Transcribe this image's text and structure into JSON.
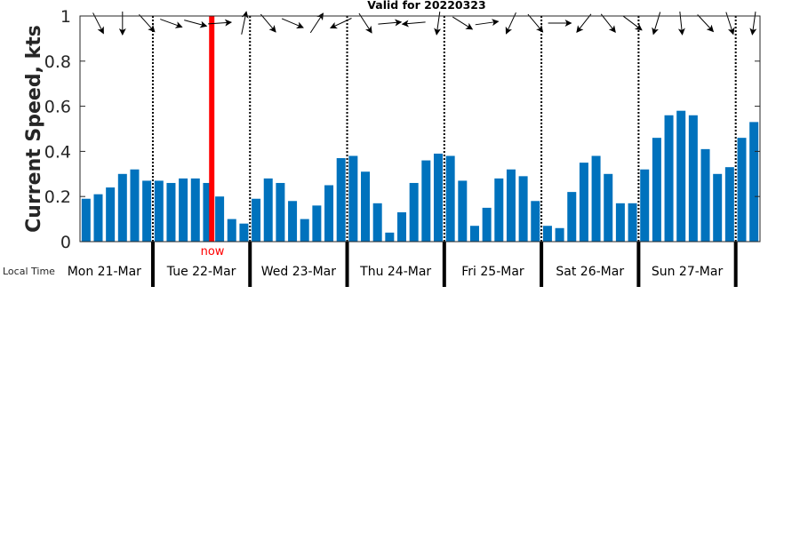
{
  "chart_data": {
    "type": "bar",
    "title": "Valid for 20220323",
    "ylabel": "Current Speed, kts",
    "xlabel": "Local Time",
    "ylim": [
      0,
      1
    ],
    "yticks": [
      "0",
      "0.2",
      "0.4",
      "0.6",
      "0.8",
      "1"
    ],
    "grid": false,
    "bar_color": "#0072BD",
    "now_label": "now",
    "now_color": "#FF0000",
    "now_bar_position": 10.85,
    "days": [
      "Mon 21-Mar",
      "Tue 22-Mar",
      "Wed 23-Mar",
      "Thu 24-Mar",
      "Fri 25-Mar",
      "Sat 26-Mar",
      "Sun 27-Mar"
    ],
    "bars_per_day": 8,
    "values": [
      0.19,
      0.21,
      0.24,
      0.3,
      0.32,
      0.27,
      0.27,
      0.26,
      0.28,
      0.28,
      0.26,
      0.2,
      0.1,
      0.08,
      0.19,
      0.28,
      0.26,
      0.18,
      0.1,
      0.16,
      0.25,
      0.37,
      0.38,
      0.31,
      0.17,
      0.04,
      0.13,
      0.26,
      0.36,
      0.39,
      0.38,
      0.27,
      0.07,
      0.15,
      0.28,
      0.32,
      0.29,
      0.18,
      0.07,
      0.06,
      0.22,
      0.35,
      0.38,
      0.3,
      0.17,
      0.17,
      0.32,
      0.46,
      0.56,
      0.58,
      0.56,
      0.41,
      0.3,
      0.33,
      0.46,
      0.53
    ],
    "direction_arrows_deg": [
      153,
      180,
      138,
      110,
      105,
      86,
      12,
      140,
      113,
      33,
      245,
      147,
      85,
      265,
      188,
      122,
      82,
      205,
      140,
      90,
      218,
      142,
      127,
      197,
      174,
      137,
      162,
      188
    ]
  }
}
